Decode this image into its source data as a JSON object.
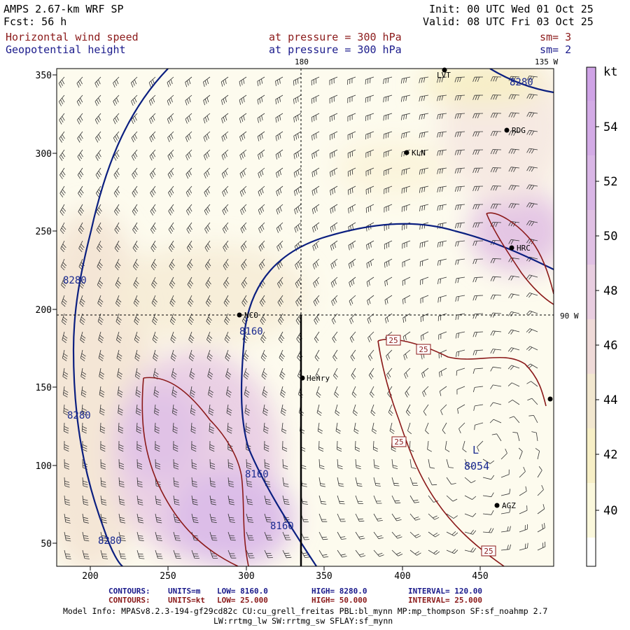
{
  "header": {
    "title": "AMPS 2.67-km WRF SP",
    "fcst": "Fcst:   56 h",
    "init": "Init: 00 UTC Wed 01 Oct 25",
    "valid": "Valid: 08 UTC Fri 03 Oct 25",
    "field1": "Horizontal wind speed",
    "field2": "Geopotential height",
    "level1": "at pressure =  300 hPa",
    "level2": "at pressure =  300 hPa",
    "sm1": "sm= 3",
    "sm2": "sm= 2"
  },
  "map": {
    "meridian_180": "180",
    "meridian_135w": "135 W",
    "meridian_90w": "90 W",
    "x_ticks": [
      "200",
      "250",
      "300",
      "350",
      "400",
      "450"
    ],
    "y_ticks": [
      "350",
      "300",
      "250",
      "200",
      "150",
      "100",
      "50"
    ],
    "stations": [
      {
        "label": "LVT"
      },
      {
        "label": "RDG"
      },
      {
        "label": "KLN"
      },
      {
        "label": "HRC"
      },
      {
        "label": "NCO"
      },
      {
        "label": "Henry"
      },
      {
        "label": "AGZ"
      }
    ],
    "height_labels": [
      "8280",
      "8280",
      "8160",
      "8280",
      "8160",
      "8160",
      "8280"
    ],
    "speed_labels": [
      "25",
      "25",
      "25",
      "25"
    ],
    "low_label": "L",
    "low_value": "8054",
    "colors": {
      "height": "#0b1f80",
      "speed": "#8b1a1a",
      "barb": "#222222"
    }
  },
  "colorbar": {
    "unit": "kt",
    "ticks": [
      "54",
      "52",
      "50",
      "48",
      "46",
      "44",
      "42",
      "40"
    ],
    "colors": [
      "#ffffff",
      "#fbf8dc",
      "#f7efc6",
      "#f5e8d2",
      "#efd9df",
      "#e6c9e4",
      "#dcb8e6",
      "#d3aae6"
    ]
  },
  "footer": {
    "c1_label": "CONTOURS:",
    "c1_units": "UNITS=m",
    "c1_low": "LOW=   8160.0",
    "c1_high": "HIGH=  8280.0",
    "c1_int": "INTERVAL=    120.00",
    "c2_label": "CONTOURS:",
    "c2_units": "UNITS=kt",
    "c2_low": "LOW=  25.000",
    "c2_high": "HIGH=  50.000",
    "c2_int": "INTERVAL=    25.000",
    "model_info": "Model Info: MPASv8.2.3-194-gf29cd82c CU:cu_grell_freitas PBL:bl_mynn MP:mp_thompson SF:sf_noahmp 2.7",
    "model_info2": "LW:rrtmg_lw SW:rrtmg_sw SFLAY:sf_mynn"
  }
}
